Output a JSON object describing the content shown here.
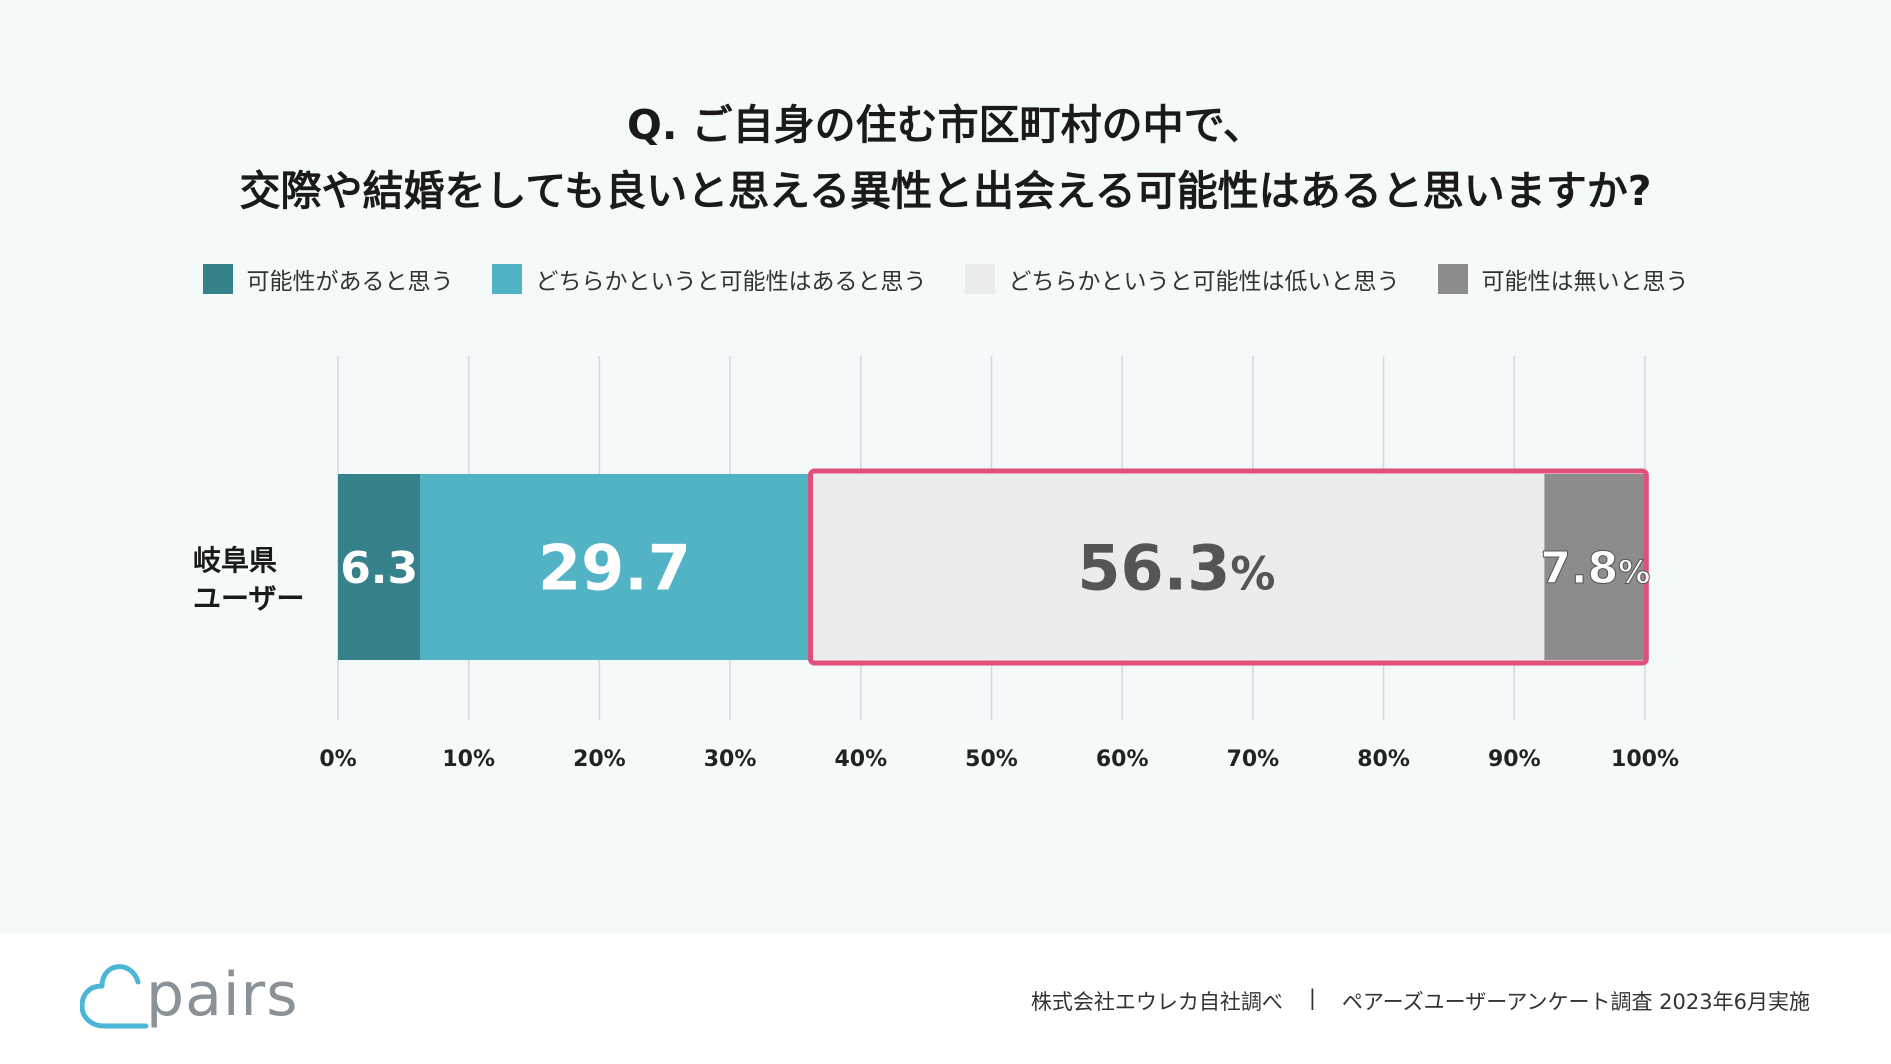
{
  "question": {
    "line1": "Q. ご自身の住む市区町村の中で、",
    "line2": "交際や結婚をしても良いと思える異性と出会える可能性はあると思いますか?"
  },
  "colors": {
    "dark_teal": "#35818c",
    "teal": "#52b3c5",
    "light_gray": "#ebedec",
    "gray": "#8c8c8c",
    "highlight": "#e0507a"
  },
  "chart_data": {
    "type": "bar",
    "orientation": "horizontal",
    "stacked": true,
    "categories": [
      "岐阜県\nユーザー"
    ],
    "series": [
      {
        "name": "可能性があると思う",
        "values": [
          6.3
        ],
        "label": "6.3",
        "color": "#35818c",
        "label_color": "#ffffff"
      },
      {
        "name": "どちらかというと可能性はあると思う",
        "values": [
          29.7
        ],
        "label": "29.7",
        "color": "#52b3c5",
        "label_color": "#ffffff"
      },
      {
        "name": "どちらかというと可能性は低いと思う",
        "values": [
          56.3
        ],
        "label": "56.3",
        "color": "#ebedec",
        "label_color": "#555555"
      },
      {
        "name": "可能性は無いと思う",
        "values": [
          7.8
        ],
        "label": "7.8",
        "color": "#8c8c8c",
        "label_color": "#ffffff"
      }
    ],
    "percent_suffix": [
      "",
      "",
      "%",
      "%"
    ],
    "xlim": [
      0,
      100
    ],
    "xticks": [
      "0%",
      "10%",
      "20%",
      "30%",
      "40%",
      "50%",
      "60%",
      "70%",
      "80%",
      "90%",
      "100%"
    ],
    "grid": true,
    "legend_position": "top",
    "highlight_series": [
      2,
      3
    ]
  },
  "footer": {
    "logo": "pairs",
    "source": "株式会社エウレカ自社調べ",
    "separator": "|",
    "survey": "ペアーズユーザーアンケート調査 2023年6月実施"
  }
}
